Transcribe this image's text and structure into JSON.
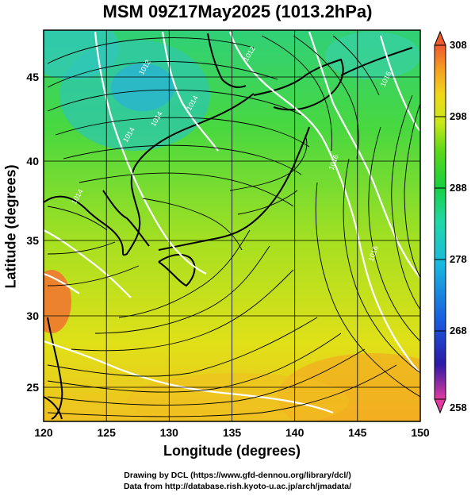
{
  "title": "MSM 09Z17May2025 (1013.2hPa)",
  "axes": {
    "xlabel": "Longitude (degrees)",
    "ylabel": "Latitude  (degrees)",
    "xticks": [
      "120",
      "125",
      "130",
      "135",
      "140",
      "145",
      "150"
    ],
    "yticks": [
      "25",
      "30",
      "35",
      "40",
      "45"
    ],
    "xlim": [
      120,
      150
    ],
    "ylim": [
      22.4,
      47.6
    ]
  },
  "colorbar": {
    "ticks": [
      "308",
      "298",
      "288",
      "278",
      "268",
      "258"
    ],
    "range": [
      258,
      308
    ],
    "colors": [
      "#e23aa0",
      "#2a1aa8",
      "#1a5ae0",
      "#18b8e0",
      "#20d8a8",
      "#18d040",
      "#5ad818",
      "#c8e818",
      "#f0d818",
      "#f5a020",
      "#ee5a30"
    ]
  },
  "contour_labels": [
    "1014",
    "1014",
    "1014",
    "1014",
    "1012",
    "1012",
    "1016",
    "1016",
    "1016"
  ],
  "footer": {
    "line1": "Drawing by DCL (https://www.gfd-dennou.org/library/dcl/)",
    "line2": "Data from http://database.rish.kyoto-u.ac.jp/arch/jmadata/"
  },
  "colors": {
    "land_outline": "#000000",
    "isobar": "#ffffff",
    "streamline": "#000000"
  }
}
